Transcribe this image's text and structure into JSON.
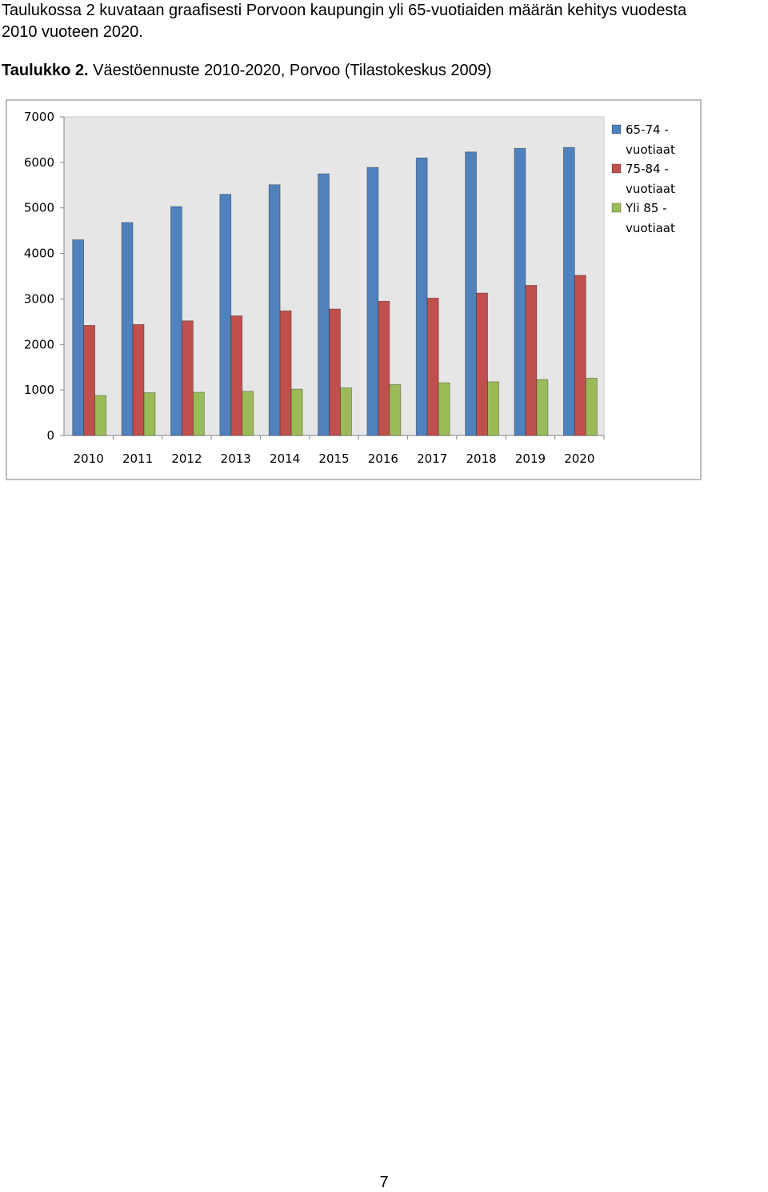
{
  "intro": {
    "line1": "Taulukossa 2 kuvataan graafisesti Porvoon kaupungin yli 65-vuotiaiden määrän kehitys vuodesta",
    "line2": "2010 vuoteen 2020."
  },
  "caption": {
    "label": "Taulukko 2.",
    "text": " Väestöennuste 2010-2020, Porvoo (Tilastokeskus 2009)"
  },
  "page_number": "7",
  "chart_data": {
    "type": "bar",
    "title": "",
    "xlabel": "",
    "ylabel": "",
    "ylim": [
      0,
      7000
    ],
    "yticks": [
      "0",
      "1000",
      "2000",
      "3000",
      "4000",
      "5000",
      "6000",
      "7000"
    ],
    "grid": false,
    "legend_position": "right",
    "categories": [
      "2010",
      "2011",
      "2012",
      "2013",
      "2014",
      "2015",
      "2016",
      "2017",
      "2018",
      "2019",
      "2020"
    ],
    "series": [
      {
        "name_line1": "65-74 -",
        "name_line2": "vuotiaat",
        "color": "#4f81bd",
        "values": [
          4300,
          4680,
          5030,
          5300,
          5510,
          5750,
          5890,
          6100,
          6230,
          6310,
          6330
        ]
      },
      {
        "name_line1": "75-84 -",
        "name_line2": "vuotiaat",
        "color": "#c0504d",
        "values": [
          2420,
          2440,
          2520,
          2630,
          2740,
          2780,
          2950,
          3020,
          3130,
          3300,
          3520
        ]
      },
      {
        "name_line1": "Yli 85 -",
        "name_line2": "vuotiaat",
        "color": "#9bbb59",
        "values": [
          880,
          940,
          950,
          970,
          1020,
          1050,
          1120,
          1160,
          1180,
          1230,
          1260
        ]
      }
    ]
  }
}
